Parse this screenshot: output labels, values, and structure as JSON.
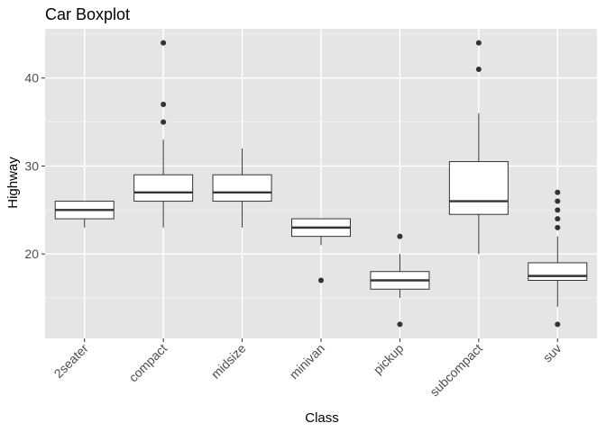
{
  "chart_data": {
    "type": "boxplot",
    "title": "Car Boxplot",
    "xlabel": "Class",
    "ylabel": "Highway",
    "ylim": [
      10.4,
      45.6
    ],
    "yticks": [
      20,
      30,
      40
    ],
    "grid": true,
    "categories": [
      "2seater",
      "compact",
      "midsize",
      "minivan",
      "pickup",
      "subcompact",
      "suv"
    ],
    "boxes": [
      {
        "category": "2seater",
        "whisker_low": 23,
        "q1": 24,
        "median": 25,
        "q3": 26,
        "whisker_high": 26,
        "outliers": []
      },
      {
        "category": "compact",
        "whisker_low": 23,
        "q1": 26,
        "median": 27,
        "q3": 29,
        "whisker_high": 33,
        "outliers": [
          35,
          37,
          44
        ]
      },
      {
        "category": "midsize",
        "whisker_low": 23,
        "q1": 26,
        "median": 27,
        "q3": 29,
        "whisker_high": 32,
        "outliers": []
      },
      {
        "category": "minivan",
        "whisker_low": 21,
        "q1": 22,
        "median": 23,
        "q3": 24,
        "whisker_high": 24,
        "outliers": [
          17
        ]
      },
      {
        "category": "pickup",
        "whisker_low": 15,
        "q1": 16,
        "median": 17,
        "q3": 18,
        "whisker_high": 20,
        "outliers": [
          12,
          22
        ]
      },
      {
        "category": "subcompact",
        "whisker_low": 20,
        "q1": 24.5,
        "median": 26,
        "q3": 30.5,
        "whisker_high": 36,
        "outliers": [
          41,
          44
        ]
      },
      {
        "category": "suv",
        "whisker_low": 14,
        "q1": 17,
        "median": 17.5,
        "q3": 19,
        "whisker_high": 22,
        "outliers": [
          12,
          23,
          24,
          25,
          26,
          27
        ]
      }
    ],
    "colors": {
      "panel": "#e5e5e5",
      "grid_major": "#ffffff",
      "box_fill": "#ffffff",
      "box_line": "#333333",
      "outlier": "#333333"
    }
  }
}
